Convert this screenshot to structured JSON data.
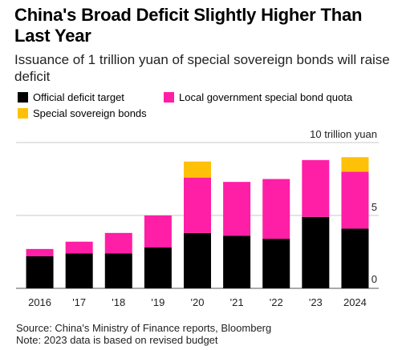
{
  "chart_data": {
    "type": "bar",
    "stacked": true,
    "title": "China's Broad Deficit Slightly Higher Than Last Year",
    "subtitle": "Issuance of 1 trillion yuan of special sovereign bonds will raise deficit",
    "categories": [
      "2016",
      "'17",
      "'18",
      "'19",
      "'20",
      "'21",
      "'22",
      "'23",
      "2024"
    ],
    "series": [
      {
        "name": "Official deficit target",
        "color": "#000000",
        "values": [
          2.2,
          2.4,
          2.4,
          2.8,
          3.8,
          3.6,
          3.4,
          4.9,
          4.1
        ]
      },
      {
        "name": "Local government special bond quota",
        "color": "#ff1ea6",
        "values": [
          0.5,
          0.8,
          1.4,
          2.2,
          3.8,
          3.7,
          4.1,
          3.9,
          3.9
        ]
      },
      {
        "name": "Special sovereign bonds",
        "color": "#ffc107",
        "values": [
          0,
          0,
          0,
          0,
          1.1,
          0,
          0,
          0,
          1.0
        ]
      }
    ],
    "ylim": [
      0,
      10
    ],
    "yticks": [
      "0",
      "5",
      "10 trillion yuan"
    ],
    "ytick_values": [
      0,
      5,
      10
    ],
    "grid": true,
    "legend_position": "top-left"
  },
  "source": "Source: China's Ministry of Finance reports, Bloomberg",
  "note": "Note: 2023 data is based on revised budget"
}
